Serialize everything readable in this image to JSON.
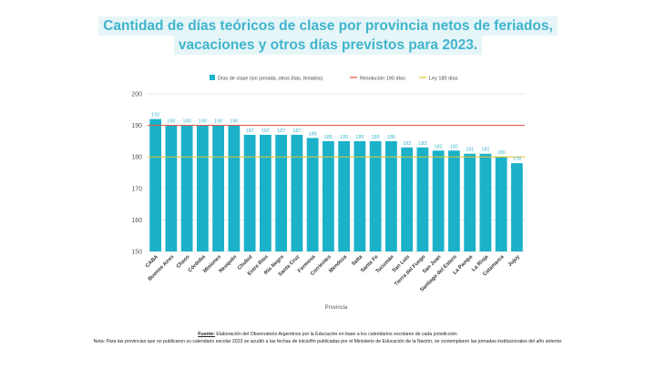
{
  "title_line1": "Cantidad de días teóricos de clase por provincia netos de feriados,",
  "title_line2": "vacaciones y otros días previstos para 2023.",
  "colors": {
    "bars": "#1ab1c9",
    "resolution_line": "#e74c3c",
    "law_line": "#e8c42c",
    "title": "#3fb5cc",
    "title_bg": "#e6f5f8"
  },
  "chart_data": {
    "type": "bar",
    "xlabel": "Provincia",
    "ylabel": "",
    "ylim": [
      150,
      200
    ],
    "yticks": [
      150,
      160,
      170,
      180,
      190,
      200
    ],
    "grid": true,
    "legend_position": "top",
    "categories": [
      "CABA",
      "Buenos Aires",
      "Chaco",
      "Córdoba",
      "Misiones",
      "Neuquén",
      "Chubut",
      "Entre Ríos",
      "Río Negro",
      "Santa Cruz",
      "Formosa",
      "Corrientes",
      "Mendoza",
      "Salta",
      "Santa Fe",
      "Tucumán",
      "San Luis",
      "Tierra del Fuego",
      "San Juan",
      "Santiago del Estero",
      "La Pampa",
      "La Rioja",
      "Catamarca",
      "Jujuy"
    ],
    "series": [
      {
        "name": "Días de clase (sin jornada, otros días, feriados)",
        "values": [
          192,
          190,
          190,
          190,
          190,
          190,
          187,
          187,
          187,
          187,
          186,
          185,
          185,
          185,
          185,
          185,
          183,
          183,
          182,
          182,
          181,
          181,
          180,
          178
        ]
      }
    ],
    "reference_lines": [
      {
        "name": "Resolución 190 días",
        "value": 190
      },
      {
        "name": "Ley 180 días",
        "value": 180
      }
    ]
  },
  "footer": {
    "source_label": "Fuente:",
    "source_text": " Elaboración del Observatorio Argentinos por la Educación en base a los calendarios escolares de cada jurisdicción.",
    "note": "Nota: Para las provincias que no publicaron su calendario escolar 2023 se acudió a las fechas de inicio/fin publicadas por el Ministerio de Educación de la Nación, se contemplaron las jornadas institucionales del año anterior."
  }
}
